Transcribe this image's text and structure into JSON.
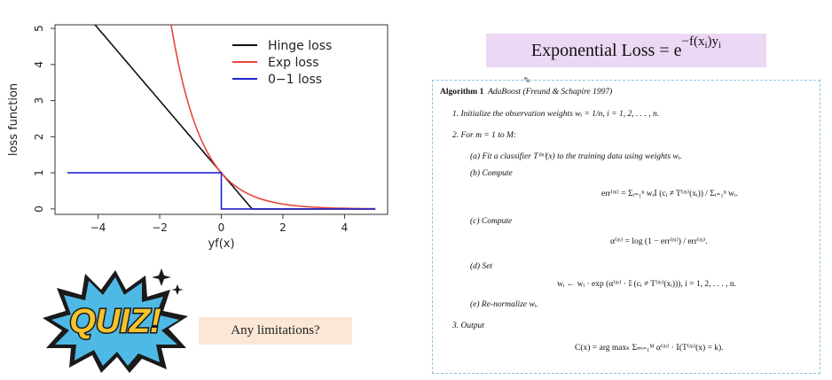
{
  "chart_data": {
    "type": "line",
    "xlabel": "yf(x)",
    "ylabel": "loss function",
    "xlim": [
      -5.4,
      5.4
    ],
    "ylim": [
      -0.15,
      5.1
    ],
    "xticks": [
      -4,
      -2,
      0,
      2,
      4
    ],
    "yticks": [
      0,
      1,
      2,
      3,
      4,
      5
    ],
    "legend_position": "top-right",
    "series": [
      {
        "name": "Hinge loss",
        "color": "#111111",
        "function": "max(0, 1 - x)",
        "x": [
          -5,
          1,
          5
        ],
        "y": [
          6,
          0,
          0
        ]
      },
      {
        "name": "Exp loss",
        "color": "#e8473b",
        "function": "exp(-x)",
        "x": [
          -1.6,
          -1,
          0,
          1,
          2,
          3,
          4,
          5
        ],
        "y": [
          4.95,
          2.72,
          1,
          0.37,
          0.14,
          0.05,
          0.02,
          0.01
        ]
      },
      {
        "name": "0−1 loss",
        "color": "#2323cc",
        "function": "1 if x < 0 else 0",
        "x": [
          -5,
          0,
          0,
          5
        ],
        "y": [
          1,
          1,
          0,
          0
        ]
      }
    ]
  },
  "formula": {
    "label": "Exponential Loss =",
    "base": "e",
    "exponent_main": "−f(x",
    "exponent_sub": "i",
    "exponent_close": ")y",
    "exponent_sub2": "i"
  },
  "algorithm": {
    "title": "Algorithm 1",
    "subtitle": "AdaBoost (Freund & Schapire 1997)",
    "step1": "1.  Initialize the observation weights wᵢ = 1/n,  i = 1, 2, . . . , n.",
    "step2": "2.  For m = 1 to M:",
    "a": "(a)  Fit a classifier T⁽ᵐ⁾(x) to the training data using weights wᵢ.",
    "b": "(b)  Compute",
    "b_formula": "err⁽ᵐ⁾ = Σᵢ₌₁ⁿ wᵢ𝕀 (cᵢ ≠ T⁽ᵐ⁾(xᵢ)) / Σᵢ₌₁ⁿ wᵢ.",
    "c": "(c)  Compute",
    "c_formula": "α⁽ᵐ⁾ = log (1 − err⁽ᵐ⁾) / err⁽ᵐ⁾.",
    "d": "(d)  Set",
    "d_formula": "wᵢ ← wᵢ · exp (α⁽ᵐ⁾ · 𝕀 (cᵢ ≠ T⁽ᵐ⁾(xᵢ))),  i = 1, 2, . . . , n.",
    "e": "(e)  Re-normalize wᵢ.",
    "step3": "3.  Output",
    "output_formula": "C(x) = arg maxₖ Σₘ₌₁ᴹ α⁽ᵐ⁾ · 𝕀(T⁽ᵐ⁾(x) = k)."
  },
  "limitations": "Any limitations?",
  "quiz": "QUIZ!"
}
